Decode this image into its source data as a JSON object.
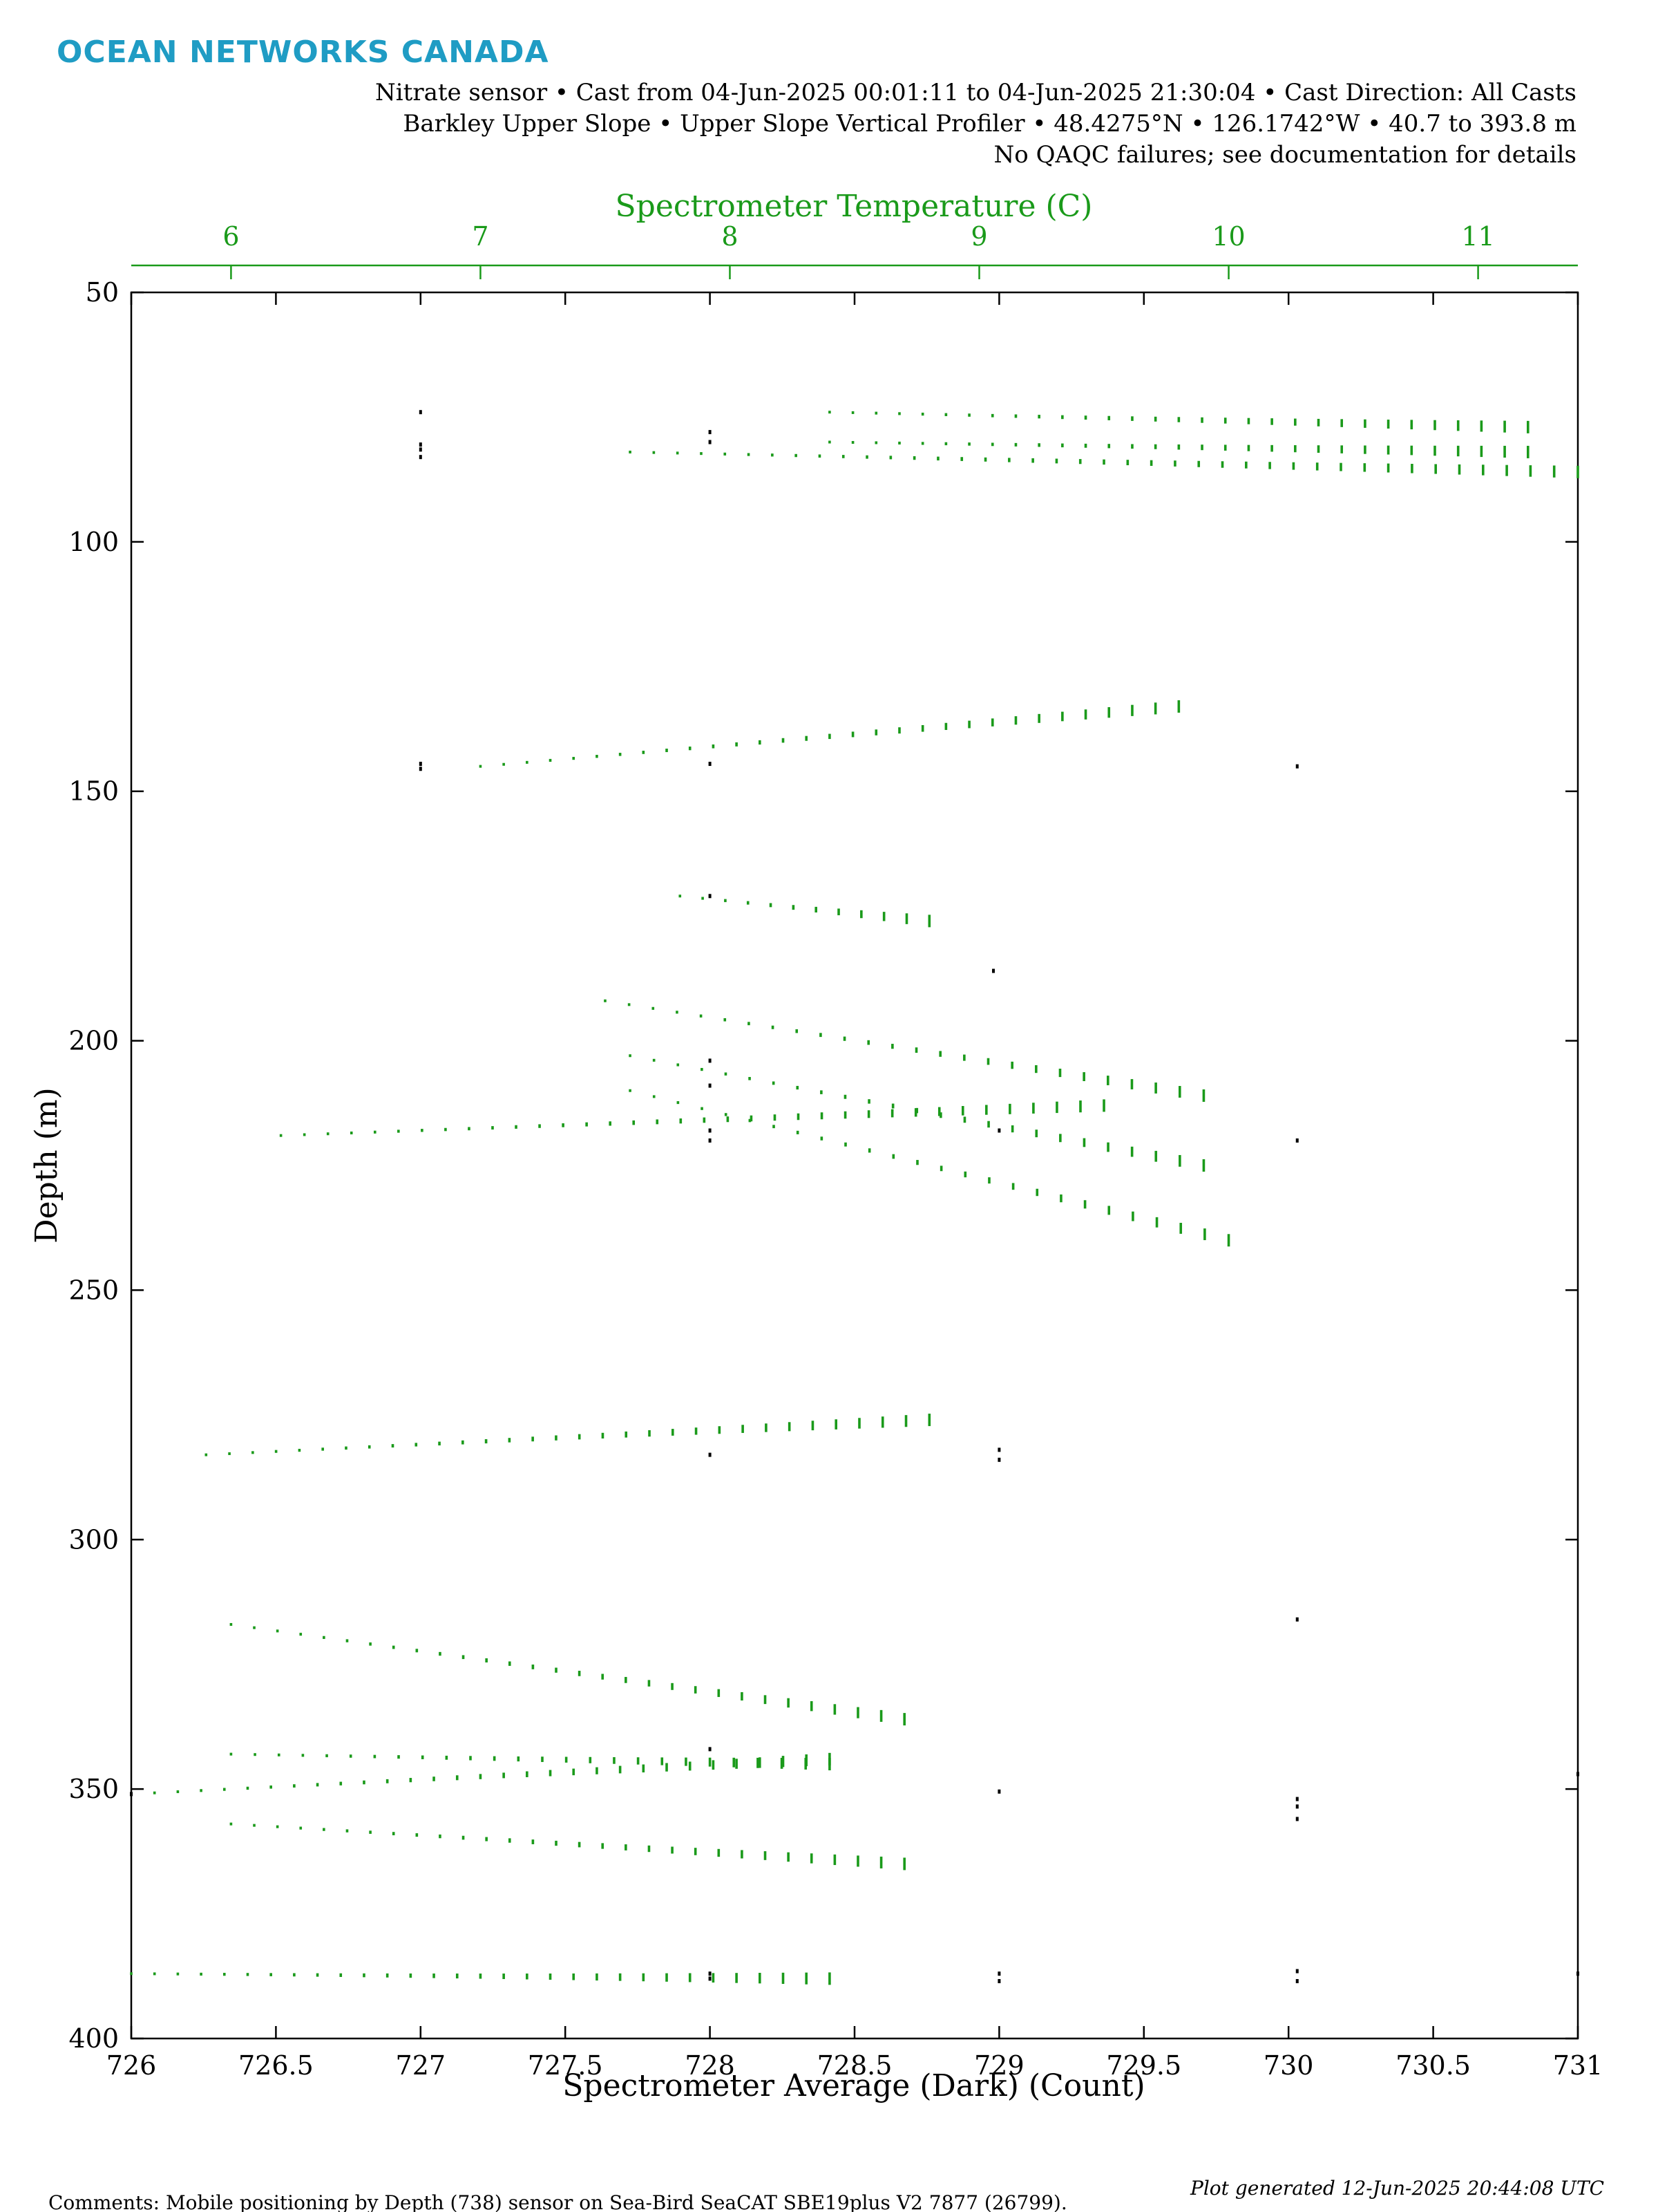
{
  "logo": "OCEAN NETWORKS CANADA",
  "header": {
    "line1": "Nitrate sensor • Cast from 04-Jun-2025 00:01:11 to 04-Jun-2025 21:30:04 • Cast Direction: All Casts",
    "line2": "Barkley Upper Slope • Upper Slope Vertical Profiler • 48.4275°N • 126.1742°W • 40.7 to 393.8 m",
    "line3": "No QAQC failures; see documentation for details"
  },
  "footer": {
    "comments": "Comments: Mobile positioning by Depth (738) sensor on Sea-Bird SeaCAT SBE19plus V2 7877 (26799).",
    "generated": "Plot generated 12-Jun-2025 20:44:08 UTC"
  },
  "colors": {
    "primary": "#000000",
    "secondary": "#1a9a1a",
    "logo": "#1f9cc4"
  },
  "chart_data": {
    "type": "scatter",
    "xlabel": "Spectrometer Average (Dark) (Count)",
    "x2label": "Spectrometer Temperature (C)",
    "ylabel": "Depth (m)",
    "xlim": [
      726,
      731
    ],
    "x2lim": [
      5.6,
      11.4
    ],
    "ylim": [
      400,
      50
    ],
    "xticks": [
      726,
      726.5,
      727,
      727.5,
      728,
      728.5,
      729,
      729.5,
      730,
      730.5,
      731
    ],
    "xtick_labels": [
      "726",
      "726.5",
      "727",
      "727.5",
      "728",
      "728.5",
      "729",
      "729.5",
      "730",
      "730.5",
      "731"
    ],
    "x2ticks": [
      6,
      7,
      8,
      9,
      10,
      11
    ],
    "x2tick_labels": [
      "6",
      "7",
      "8",
      "9",
      "10",
      "11"
    ],
    "yticks": [
      50,
      100,
      150,
      200,
      250,
      300,
      350,
      400
    ],
    "ytick_labels": [
      "50",
      "100",
      "150",
      "200",
      "250",
      "300",
      "350",
      "400"
    ],
    "grid": false,
    "series": [
      {
        "axis": "bottom",
        "color": "#000000",
        "points": [
          [
            727,
            74
          ],
          [
            727,
            80.5
          ],
          [
            727,
            81.5
          ],
          [
            727,
            83
          ],
          [
            728,
            78
          ],
          [
            728,
            80
          ],
          [
            727,
            144.5
          ],
          [
            727,
            145.5
          ],
          [
            728,
            144.5
          ],
          [
            730.03,
            145
          ],
          [
            728,
            171
          ],
          [
            728.98,
            186
          ],
          [
            728,
            204
          ],
          [
            728,
            209
          ],
          [
            728,
            218
          ],
          [
            728,
            220
          ],
          [
            729,
            218
          ],
          [
            730.03,
            220
          ],
          [
            728,
            283
          ],
          [
            729,
            282
          ],
          [
            729,
            284
          ],
          [
            728,
            342
          ],
          [
            729,
            350.5
          ],
          [
            730.03,
            316
          ],
          [
            730.03,
            352
          ],
          [
            730.03,
            353.5
          ],
          [
            730.03,
            356
          ],
          [
            728,
            387
          ],
          [
            728,
            388
          ],
          [
            729,
            387
          ],
          [
            729,
            388.5
          ],
          [
            730.03,
            386.5
          ],
          [
            730.03,
            388.5
          ],
          [
            726,
            351
          ],
          [
            731,
            347
          ],
          [
            731,
            387
          ]
        ]
      },
      {
        "axis": "top",
        "color": "#1a9a1a",
        "profiles": [
          {
            "x_from": 8.4,
            "x_to": 11.2,
            "depth_from": 74,
            "depth_to": 77
          },
          {
            "x_from": 8.4,
            "x_to": 11.2,
            "depth_from": 80,
            "depth_to": 82
          },
          {
            "x_from": 7.6,
            "x_to": 11.4,
            "depth_from": 82,
            "depth_to": 86
          },
          {
            "x_from": 7.0,
            "x_to": 9.8,
            "depth_from": 145,
            "depth_to": 133
          },
          {
            "x_from": 7.8,
            "x_to": 8.8,
            "depth_from": 171,
            "depth_to": 176
          },
          {
            "x_from": 7.5,
            "x_to": 9.9,
            "depth_from": 192,
            "depth_to": 211
          },
          {
            "x_from": 7.6,
            "x_to": 9.9,
            "depth_from": 203,
            "depth_to": 225
          },
          {
            "x_from": 6.2,
            "x_to": 9.5,
            "depth_from": 219,
            "depth_to": 213
          },
          {
            "x_from": 7.6,
            "x_to": 10.0,
            "depth_from": 210,
            "depth_to": 240
          },
          {
            "x_from": 5.9,
            "x_to": 8.8,
            "depth_from": 283,
            "depth_to": 276
          },
          {
            "x_from": 6.0,
            "x_to": 8.7,
            "depth_from": 317,
            "depth_to": 336
          },
          {
            "x_from": 6.0,
            "x_to": 8.4,
            "depth_from": 343,
            "depth_to": 345
          },
          {
            "x_from": 5.6,
            "x_to": 8.4,
            "depth_from": 351,
            "depth_to": 344
          },
          {
            "x_from": 6.0,
            "x_to": 8.7,
            "depth_from": 357,
            "depth_to": 365
          },
          {
            "x_from": 5.6,
            "x_to": 8.4,
            "depth_from": 387,
            "depth_to": 388
          }
        ]
      }
    ]
  }
}
